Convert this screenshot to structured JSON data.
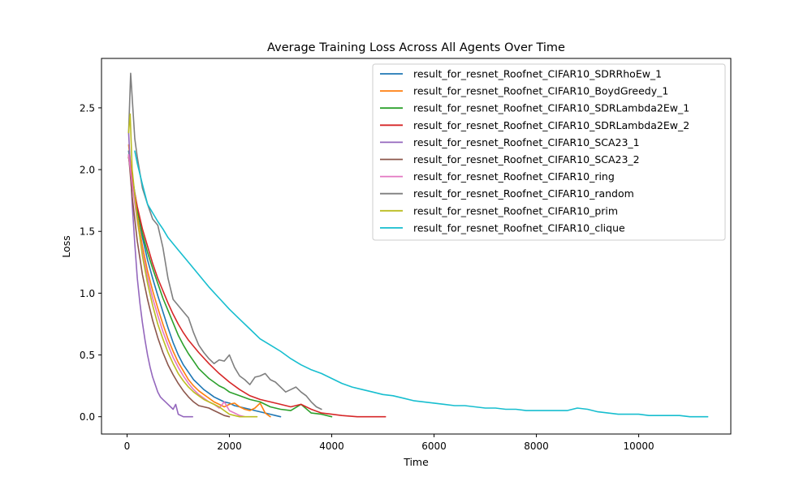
{
  "chart_data": {
    "type": "line",
    "title": "Average Training Loss Across All Agents Over Time",
    "xlabel": "Time",
    "ylabel": "Loss",
    "xlim": [
      -500,
      11800
    ],
    "ylim": [
      -0.14,
      2.9
    ],
    "xticks": [
      0,
      2000,
      4000,
      6000,
      8000,
      10000
    ],
    "xtick_labels": [
      "0",
      "2000",
      "4000",
      "6000",
      "8000",
      "10000"
    ],
    "yticks": [
      0.0,
      0.5,
      1.0,
      1.5,
      2.0,
      2.5
    ],
    "ytick_labels": [
      "0.0",
      "0.5",
      "1.0",
      "1.5",
      "2.0",
      "2.5"
    ],
    "grid": false,
    "legend_position": "top-right",
    "series": [
      {
        "name": "result_for_resnet_Roofnet_CIFAR10_SDRRhoEw_1",
        "color": "#1f77b4",
        "x": [
          30,
          100,
          200,
          300,
          400,
          500,
          600,
          700,
          800,
          900,
          1000,
          1100,
          1200,
          1300,
          1400,
          1500,
          1600,
          1700,
          1800,
          1900,
          2000,
          2100,
          2200,
          2300,
          2400,
          2500,
          2600,
          2700,
          2800,
          2900,
          3000
        ],
        "y": [
          2.15,
          1.95,
          1.68,
          1.45,
          1.27,
          1.12,
          0.98,
          0.85,
          0.72,
          0.6,
          0.5,
          0.42,
          0.36,
          0.3,
          0.26,
          0.22,
          0.19,
          0.16,
          0.14,
          0.12,
          0.11,
          0.09,
          0.08,
          0.07,
          0.06,
          0.05,
          0.04,
          0.03,
          0.02,
          0.01,
          0.0
        ]
      },
      {
        "name": "result_for_resnet_Roofnet_CIFAR10_BoydGreedy_1",
        "color": "#ff7f0e",
        "x": [
          30,
          100,
          200,
          300,
          400,
          500,
          600,
          700,
          800,
          900,
          1000,
          1100,
          1200,
          1300,
          1400,
          1500,
          1600,
          1700,
          1800,
          1900,
          2000,
          2100,
          2200,
          2300,
          2400,
          2500,
          2600,
          2700,
          2800
        ],
        "y": [
          2.2,
          1.93,
          1.62,
          1.38,
          1.18,
          1.02,
          0.88,
          0.75,
          0.63,
          0.53,
          0.44,
          0.37,
          0.3,
          0.25,
          0.21,
          0.18,
          0.15,
          0.12,
          0.1,
          0.08,
          0.1,
          0.11,
          0.08,
          0.06,
          0.05,
          0.07,
          0.11,
          0.03,
          0.0
        ]
      },
      {
        "name": "result_for_resnet_Roofnet_CIFAR10_SDRLambda2Ew_1",
        "color": "#2ca02c",
        "x": [
          30,
          100,
          200,
          300,
          400,
          500,
          600,
          700,
          800,
          900,
          1000,
          1100,
          1200,
          1300,
          1400,
          1500,
          1600,
          1700,
          1800,
          1900,
          2000,
          2200,
          2400,
          2600,
          2800,
          3000,
          3200,
          3400,
          3600,
          3800,
          4000
        ],
        "y": [
          2.1,
          1.9,
          1.67,
          1.48,
          1.33,
          1.2,
          1.08,
          0.96,
          0.86,
          0.76,
          0.66,
          0.58,
          0.51,
          0.45,
          0.39,
          0.35,
          0.31,
          0.28,
          0.25,
          0.23,
          0.2,
          0.17,
          0.14,
          0.12,
          0.08,
          0.06,
          0.05,
          0.1,
          0.03,
          0.02,
          0.0
        ]
      },
      {
        "name": "result_for_resnet_Roofnet_CIFAR10_SDRLambda2Ew_2",
        "color": "#d62728",
        "x": [
          30,
          100,
          200,
          300,
          400,
          500,
          600,
          700,
          800,
          900,
          1000,
          1100,
          1200,
          1400,
          1600,
          1800,
          2000,
          2200,
          2400,
          2600,
          2800,
          3000,
          3200,
          3400,
          3600,
          3800,
          4000,
          4200,
          4500,
          5000,
          5050
        ],
        "y": [
          2.1,
          1.92,
          1.7,
          1.52,
          1.38,
          1.24,
          1.12,
          1.02,
          0.92,
          0.83,
          0.75,
          0.68,
          0.62,
          0.52,
          0.43,
          0.35,
          0.28,
          0.22,
          0.17,
          0.14,
          0.12,
          0.1,
          0.08,
          0.1,
          0.06,
          0.03,
          0.02,
          0.01,
          0.0,
          0.0,
          0.0
        ]
      },
      {
        "name": "result_for_resnet_Roofnet_CIFAR10_SCA23_1",
        "color": "#9467bd",
        "x": [
          30,
          100,
          150,
          200,
          250,
          300,
          350,
          400,
          450,
          500,
          550,
          600,
          650,
          700,
          750,
          800,
          850,
          900,
          950,
          1000,
          1100,
          1280
        ],
        "y": [
          2.3,
          1.72,
          1.4,
          1.12,
          0.92,
          0.76,
          0.62,
          0.5,
          0.4,
          0.32,
          0.26,
          0.2,
          0.16,
          0.14,
          0.12,
          0.1,
          0.08,
          0.06,
          0.1,
          0.02,
          0.0,
          0.0
        ]
      },
      {
        "name": "result_for_resnet_Roofnet_CIFAR10_SCA23_2",
        "color": "#8c564b",
        "x": [
          30,
          100,
          200,
          300,
          400,
          500,
          600,
          700,
          800,
          900,
          1000,
          1100,
          1200,
          1300,
          1400,
          1500,
          1600,
          1700,
          1800,
          1900,
          2000
        ],
        "y": [
          2.12,
          1.78,
          1.42,
          1.15,
          0.95,
          0.78,
          0.64,
          0.52,
          0.42,
          0.34,
          0.27,
          0.21,
          0.16,
          0.12,
          0.09,
          0.08,
          0.07,
          0.05,
          0.03,
          0.01,
          0.0
        ]
      },
      {
        "name": "result_for_resnet_Roofnet_CIFAR10_ring",
        "color": "#e377c2",
        "x": [
          30,
          100,
          200,
          300,
          400,
          500,
          600,
          700,
          800,
          900,
          1000,
          1100,
          1200,
          1300,
          1400,
          1500,
          1600,
          1700,
          1800,
          1900,
          2000,
          2100,
          2200,
          2300
        ],
        "y": [
          2.12,
          1.88,
          1.58,
          1.33,
          1.13,
          0.96,
          0.82,
          0.69,
          0.58,
          0.48,
          0.4,
          0.33,
          0.27,
          0.22,
          0.18,
          0.15,
          0.12,
          0.1,
          0.07,
          0.12,
          0.05,
          0.03,
          0.01,
          0.0
        ]
      },
      {
        "name": "result_for_resnet_Roofnet_CIFAR10_random",
        "color": "#7f7f7f",
        "x": [
          30,
          70,
          150,
          200,
          300,
          400,
          500,
          600,
          700,
          800,
          900,
          1000,
          1100,
          1200,
          1300,
          1400,
          1500,
          1600,
          1700,
          1800,
          1900,
          2000,
          2100,
          2200,
          2300,
          2400,
          2500,
          2600,
          2700,
          2800,
          2900,
          3000,
          3100,
          3200,
          3300,
          3400,
          3500,
          3600,
          3700,
          3800
        ],
        "y": [
          2.3,
          2.78,
          2.25,
          2.1,
          1.85,
          1.72,
          1.6,
          1.55,
          1.37,
          1.12,
          0.95,
          0.9,
          0.85,
          0.8,
          0.68,
          0.58,
          0.52,
          0.47,
          0.43,
          0.46,
          0.45,
          0.5,
          0.4,
          0.33,
          0.3,
          0.26,
          0.32,
          0.33,
          0.35,
          0.3,
          0.28,
          0.24,
          0.2,
          0.22,
          0.24,
          0.2,
          0.17,
          0.12,
          0.08,
          0.06
        ]
      },
      {
        "name": "result_for_resnet_Roofnet_CIFAR10_prim",
        "color": "#bcbd22",
        "x": [
          30,
          60,
          100,
          200,
          300,
          400,
          500,
          600,
          700,
          800,
          900,
          1000,
          1100,
          1200,
          1300,
          1400,
          1500,
          1600,
          1700,
          1800,
          1900,
          2000,
          2100,
          2200,
          2300,
          2400,
          2540
        ],
        "y": [
          2.3,
          2.45,
          2.0,
          1.6,
          1.3,
          1.08,
          0.9,
          0.75,
          0.63,
          0.52,
          0.43,
          0.35,
          0.29,
          0.24,
          0.2,
          0.17,
          0.14,
          0.12,
          0.1,
          0.08,
          0.05,
          0.02,
          0.01,
          0.0,
          0.0,
          0.0,
          0.0
        ]
      },
      {
        "name": "result_for_resnet_Roofnet_CIFAR10_clique",
        "color": "#17becf",
        "x": [
          150,
          200,
          300,
          400,
          500,
          600,
          700,
          800,
          1000,
          1200,
          1400,
          1600,
          1800,
          2000,
          2200,
          2400,
          2600,
          2800,
          3000,
          3200,
          3400,
          3600,
          3800,
          4000,
          4200,
          4400,
          4600,
          4800,
          5000,
          5200,
          5400,
          5600,
          5800,
          6000,
          6200,
          6400,
          6600,
          6800,
          7000,
          7200,
          7400,
          7600,
          7800,
          8000,
          8200,
          8400,
          8600,
          8800,
          9000,
          9200,
          9400,
          9600,
          9800,
          10000,
          10200,
          10400,
          10600,
          10800,
          11000,
          11200,
          11350
        ],
        "y": [
          2.15,
          2.05,
          1.88,
          1.72,
          1.65,
          1.58,
          1.52,
          1.45,
          1.35,
          1.25,
          1.15,
          1.05,
          0.96,
          0.87,
          0.79,
          0.71,
          0.63,
          0.58,
          0.53,
          0.47,
          0.42,
          0.38,
          0.35,
          0.31,
          0.27,
          0.24,
          0.22,
          0.2,
          0.18,
          0.17,
          0.15,
          0.13,
          0.12,
          0.11,
          0.1,
          0.09,
          0.09,
          0.08,
          0.07,
          0.07,
          0.06,
          0.06,
          0.05,
          0.05,
          0.05,
          0.05,
          0.05,
          0.07,
          0.06,
          0.04,
          0.03,
          0.02,
          0.02,
          0.02,
          0.01,
          0.01,
          0.01,
          0.01,
          0.0,
          0.0,
          0.0
        ]
      }
    ]
  }
}
